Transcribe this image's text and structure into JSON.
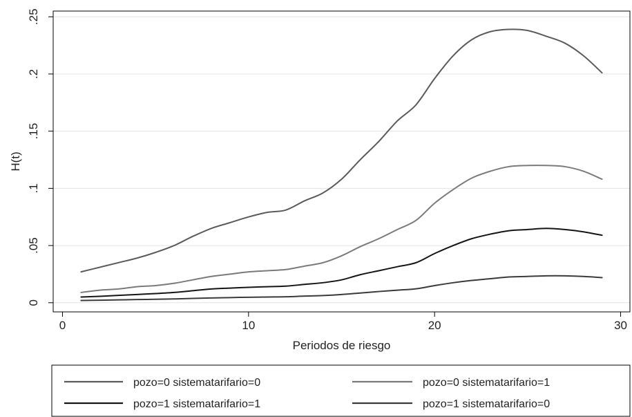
{
  "chart_data": {
    "type": "line",
    "xlabel": "Periodos de riesgo",
    "ylabel": "H(t)",
    "xlim": [
      -0.5,
      30.5
    ],
    "ylim": [
      -0.008,
      0.255
    ],
    "x_ticks": [
      0,
      10,
      20,
      30
    ],
    "x_tick_labels": [
      "0",
      "10",
      "20",
      "30"
    ],
    "y_ticks": [
      0,
      0.05,
      0.1,
      0.15,
      0.2,
      0.25
    ],
    "y_tick_labels": [
      "0",
      ".05",
      ".1",
      ".15",
      ".2",
      ".25"
    ],
    "grid": true,
    "legend_position": "bottom",
    "x": [
      1,
      2,
      3,
      4,
      5,
      6,
      7,
      8,
      9,
      10,
      11,
      12,
      13,
      14,
      15,
      16,
      17,
      18,
      19,
      20,
      21,
      22,
      23,
      24,
      25,
      26,
      27,
      28,
      29
    ],
    "series": [
      {
        "name": "pozo=0 sistematarifario=0",
        "color": "#5a5a5a",
        "values": [
          0.027,
          0.031,
          0.035,
          0.039,
          0.044,
          0.05,
          0.058,
          0.065,
          0.07,
          0.075,
          0.079,
          0.081,
          0.089,
          0.096,
          0.108,
          0.125,
          0.141,
          0.159,
          0.173,
          0.196,
          0.216,
          0.23,
          0.237,
          0.239,
          0.238,
          0.233,
          0.227,
          0.216,
          0.201
        ]
      },
      {
        "name": "pozo=0 sistematarifario=1",
        "color": "#7a7a7a",
        "values": [
          0.009,
          0.011,
          0.012,
          0.014,
          0.015,
          0.017,
          0.02,
          0.023,
          0.025,
          0.027,
          0.028,
          0.029,
          0.032,
          0.035,
          0.041,
          0.049,
          0.056,
          0.064,
          0.072,
          0.087,
          0.099,
          0.109,
          0.115,
          0.119,
          0.12,
          0.12,
          0.119,
          0.115,
          0.108
        ]
      },
      {
        "name": "pozo=1 sistematarifario=1",
        "color": "#141414",
        "values": [
          0.005,
          0.0056,
          0.0064,
          0.0072,
          0.008,
          0.009,
          0.0105,
          0.012,
          0.0128,
          0.0135,
          0.014,
          0.0145,
          0.016,
          0.0175,
          0.02,
          0.0245,
          0.028,
          0.0315,
          0.035,
          0.043,
          0.05,
          0.056,
          0.06,
          0.063,
          0.064,
          0.065,
          0.064,
          0.062,
          0.059
        ]
      },
      {
        "name": "pozo=1 sistematarifario=0",
        "color": "#3a3a3a",
        "values": [
          0.002,
          0.0022,
          0.0025,
          0.0028,
          0.003,
          0.0033,
          0.0038,
          0.0042,
          0.0045,
          0.0048,
          0.005,
          0.0052,
          0.0058,
          0.0063,
          0.0072,
          0.0085,
          0.0098,
          0.011,
          0.0122,
          0.015,
          0.0175,
          0.0195,
          0.021,
          0.0225,
          0.023,
          0.0235,
          0.0235,
          0.023,
          0.022
        ]
      }
    ]
  }
}
